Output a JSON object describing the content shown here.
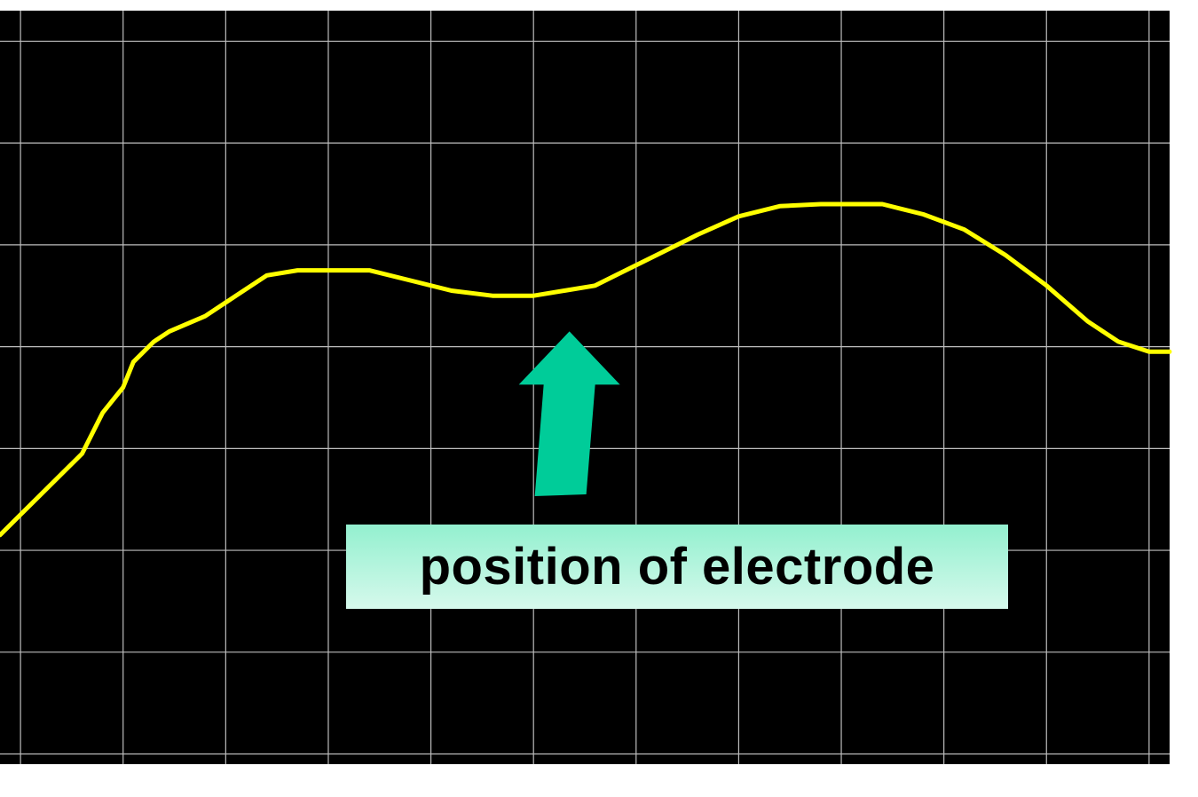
{
  "chart_data": {
    "type": "line",
    "title": "",
    "xlabel": "",
    "ylabel": "",
    "xlim": [
      0,
      11.4
    ],
    "ylim": [
      0,
      7.4
    ],
    "grid": true,
    "background_color": "#000000",
    "grid_color": "#bdbdbd",
    "series": [
      {
        "color": "#ffff00",
        "x": [
          0,
          0.2,
          0.4,
          0.6,
          0.8,
          1.0,
          1.2,
          1.3,
          1.5,
          1.65,
          2.0,
          2.3,
          2.6,
          2.9,
          3.2,
          3.6,
          4.0,
          4.4,
          4.8,
          5.2,
          5.5,
          5.8,
          6.0,
          6.4,
          6.8,
          7.2,
          7.6,
          8.0,
          8.2,
          8.6,
          9.0,
          9.4,
          9.8,
          10.2,
          10.6,
          10.9,
          11.2,
          11.4
        ],
        "y": [
          2.25,
          2.45,
          2.65,
          2.85,
          3.05,
          3.45,
          3.7,
          3.95,
          4.15,
          4.25,
          4.4,
          4.6,
          4.8,
          4.85,
          4.85,
          4.85,
          4.75,
          4.65,
          4.6,
          4.6,
          4.65,
          4.7,
          4.8,
          5.0,
          5.2,
          5.38,
          5.48,
          5.5,
          5.5,
          5.5,
          5.4,
          5.25,
          5.0,
          4.7,
          4.35,
          4.15,
          4.05,
          4.05
        ]
      }
    ],
    "annotations": [
      {
        "text": "position of electrode",
        "color": "#00cc99",
        "arrow_x": 5.55,
        "arrow_y": 4.25,
        "arrow_tail_y": 2.65
      }
    ]
  }
}
